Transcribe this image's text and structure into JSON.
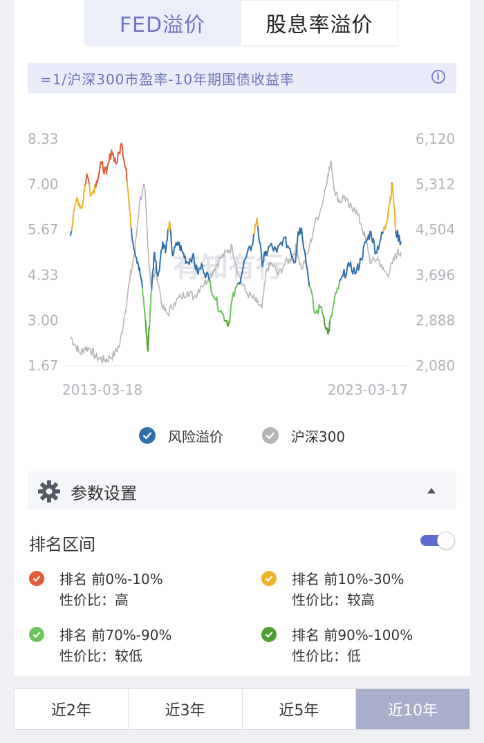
{
  "tabs": [
    {
      "label": "FED溢价",
      "active": true
    },
    {
      "label": "股息率溢价",
      "active": false
    }
  ],
  "formula": "=1/沪深300市盈率-10年期国债收益率",
  "chart_data": {
    "type": "line",
    "x_start": "2013-03-18",
    "x_end": "2023-03-17",
    "xticks": [
      "2013-03-18",
      "2023-03-17"
    ],
    "y_left_ticks": [
      "8.33",
      "7.00",
      "5.67",
      "4.33",
      "3.00",
      "1.67"
    ],
    "y_right_ticks": [
      "6,120",
      "5,312",
      "4,504",
      "3,696",
      "2,888",
      "2,080"
    ],
    "ylim_left": [
      1.67,
      8.33
    ],
    "ylim_right": [
      2080,
      6120
    ],
    "grid": false,
    "legend_position": "bottom",
    "watermark": "有知有行",
    "series": [
      {
        "name": "风险溢价",
        "axis": "left",
        "color": "#2f6faa",
        "x": [
          2013.21,
          2013.4,
          2013.55,
          2013.7,
          2013.85,
          2014.0,
          2014.15,
          2014.3,
          2014.45,
          2014.6,
          2014.75,
          2014.9,
          2015.0,
          2015.1,
          2015.25,
          2015.35,
          2015.45,
          2015.55,
          2015.65,
          2015.75,
          2015.85,
          2016.0,
          2016.1,
          2016.2,
          2016.3,
          2016.45,
          2016.6,
          2016.75,
          2016.9,
          2017.05,
          2017.2,
          2017.4,
          2017.6,
          2017.8,
          2018.0,
          2018.1,
          2018.3,
          2018.5,
          2018.7,
          2018.85,
          2019.0,
          2019.1,
          2019.25,
          2019.45,
          2019.65,
          2019.85,
          2020.0,
          2020.1,
          2020.2,
          2020.4,
          2020.6,
          2020.8,
          2021.0,
          2021.1,
          2021.25,
          2021.45,
          2021.65,
          2021.85,
          2022.0,
          2022.15,
          2022.3,
          2022.45,
          2022.6,
          2022.75,
          2022.85,
          2022.95,
          2023.05,
          2023.21
        ],
        "y": [
          5.5,
          6.6,
          6.3,
          7.3,
          6.7,
          7.1,
          7.6,
          7.3,
          8.0,
          7.6,
          8.2,
          7.4,
          6.2,
          5.3,
          4.7,
          4.2,
          3.3,
          2.1,
          3.8,
          5.0,
          4.3,
          5.3,
          5.1,
          5.9,
          4.9,
          5.3,
          5.0,
          4.7,
          4.9,
          4.4,
          4.6,
          4.2,
          3.6,
          3.2,
          2.9,
          3.6,
          4.1,
          4.8,
          5.2,
          6.0,
          4.7,
          4.9,
          5.2,
          5.0,
          5.4,
          5.1,
          4.7,
          5.6,
          5.7,
          4.3,
          3.2,
          3.4,
          2.6,
          3.1,
          3.8,
          4.3,
          4.6,
          4.4,
          4.8,
          5.3,
          5.6,
          5.0,
          5.4,
          5.8,
          6.4,
          7.0,
          5.6,
          5.3
        ]
      },
      {
        "name": "沪深300",
        "axis": "right",
        "color": "#b5b5b5",
        "x": [
          2013.21,
          2013.35,
          2013.5,
          2013.65,
          2013.8,
          2013.95,
          2014.1,
          2014.25,
          2014.4,
          2014.55,
          2014.7,
          2014.85,
          2015.0,
          2015.15,
          2015.3,
          2015.45,
          2015.55,
          2015.65,
          2015.8,
          2016.0,
          2016.15,
          2016.35,
          2016.55,
          2016.75,
          2016.95,
          2017.15,
          2017.35,
          2017.55,
          2017.75,
          2017.95,
          2018.1,
          2018.3,
          2018.5,
          2018.7,
          2018.85,
          2019.0,
          2019.15,
          2019.3,
          2019.5,
          2019.7,
          2019.9,
          2020.05,
          2020.2,
          2020.4,
          2020.6,
          2020.8,
          2021.0,
          2021.1,
          2021.2,
          2021.35,
          2021.5,
          2021.65,
          2021.8,
          2022.0,
          2022.15,
          2022.3,
          2022.5,
          2022.65,
          2022.8,
          2022.95,
          2023.1,
          2023.21
        ],
        "y": [
          2600,
          2450,
          2300,
          2400,
          2380,
          2250,
          2200,
          2180,
          2220,
          2300,
          2450,
          3000,
          3600,
          4100,
          5000,
          5300,
          4200,
          3500,
          3800,
          3100,
          3000,
          3200,
          3300,
          3400,
          3300,
          3500,
          3600,
          3800,
          4000,
          4100,
          4200,
          3700,
          3400,
          3300,
          3200,
          3100,
          3800,
          3900,
          3700,
          3900,
          4000,
          4200,
          3800,
          4100,
          4600,
          4900,
          5500,
          5700,
          5200,
          5000,
          5100,
          4900,
          4900,
          4600,
          4300,
          3900,
          4000,
          3800,
          3700,
          3900,
          4100,
          4100
        ]
      }
    ]
  },
  "legend": [
    {
      "label": "风险溢价",
      "color": "#2f6faa"
    },
    {
      "label": "沪深300",
      "color": "#b5b5b5"
    }
  ],
  "bands": [
    {
      "label": "排名 前0%-10%",
      "value": "性价比：高",
      "color": "#e05b3a"
    },
    {
      "label": "排名 前10%-30%",
      "value": "性价比：较高",
      "color": "#eeb12a"
    },
    {
      "label": "排名 前70%-90%",
      "value": "性价比：较低",
      "color": "#6cc45c"
    },
    {
      "label": "排名 前90%-100%",
      "value": "性价比：低",
      "color": "#4b9e2e"
    }
  ],
  "settings": {
    "title": "参数设置",
    "rank_title": "排名区间",
    "rank_toggle_on": true
  },
  "bottom_tabs": [
    {
      "label": "近2年",
      "active": false
    },
    {
      "label": "近3年",
      "active": false
    },
    {
      "label": "近5年",
      "active": false
    },
    {
      "label": "近10年",
      "active": true
    }
  ]
}
